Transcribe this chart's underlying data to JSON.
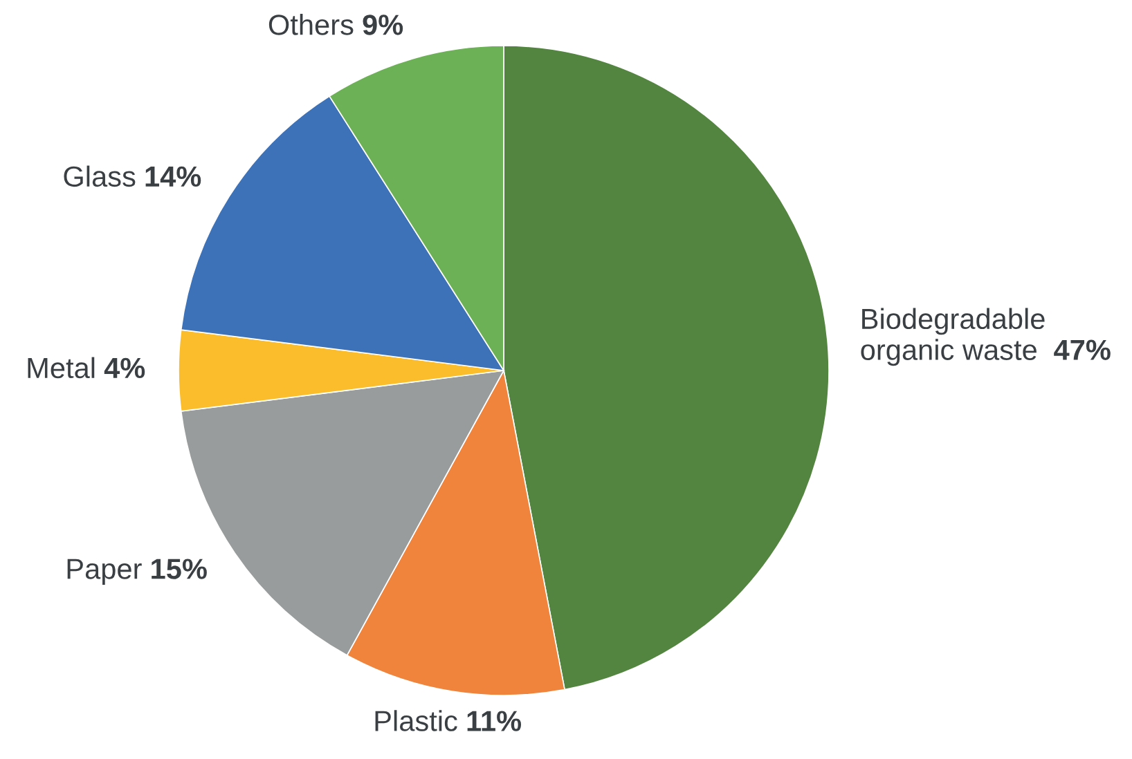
{
  "chart_data": {
    "type": "pie",
    "categories": [
      "Biodegradable\norganic waste",
      "Plastic",
      "Paper",
      "Metal",
      "Glass",
      "Others"
    ],
    "values": [
      47,
      11,
      15,
      4,
      14,
      9
    ],
    "colors": [
      "#538540",
      "#f0843c",
      "#999c9c",
      "#fbbd2b",
      "#3d72b9",
      "#6cb155"
    ],
    "value_labels": [
      "47%",
      "11%",
      "15%",
      "4%",
      "14%",
      "9%"
    ]
  }
}
